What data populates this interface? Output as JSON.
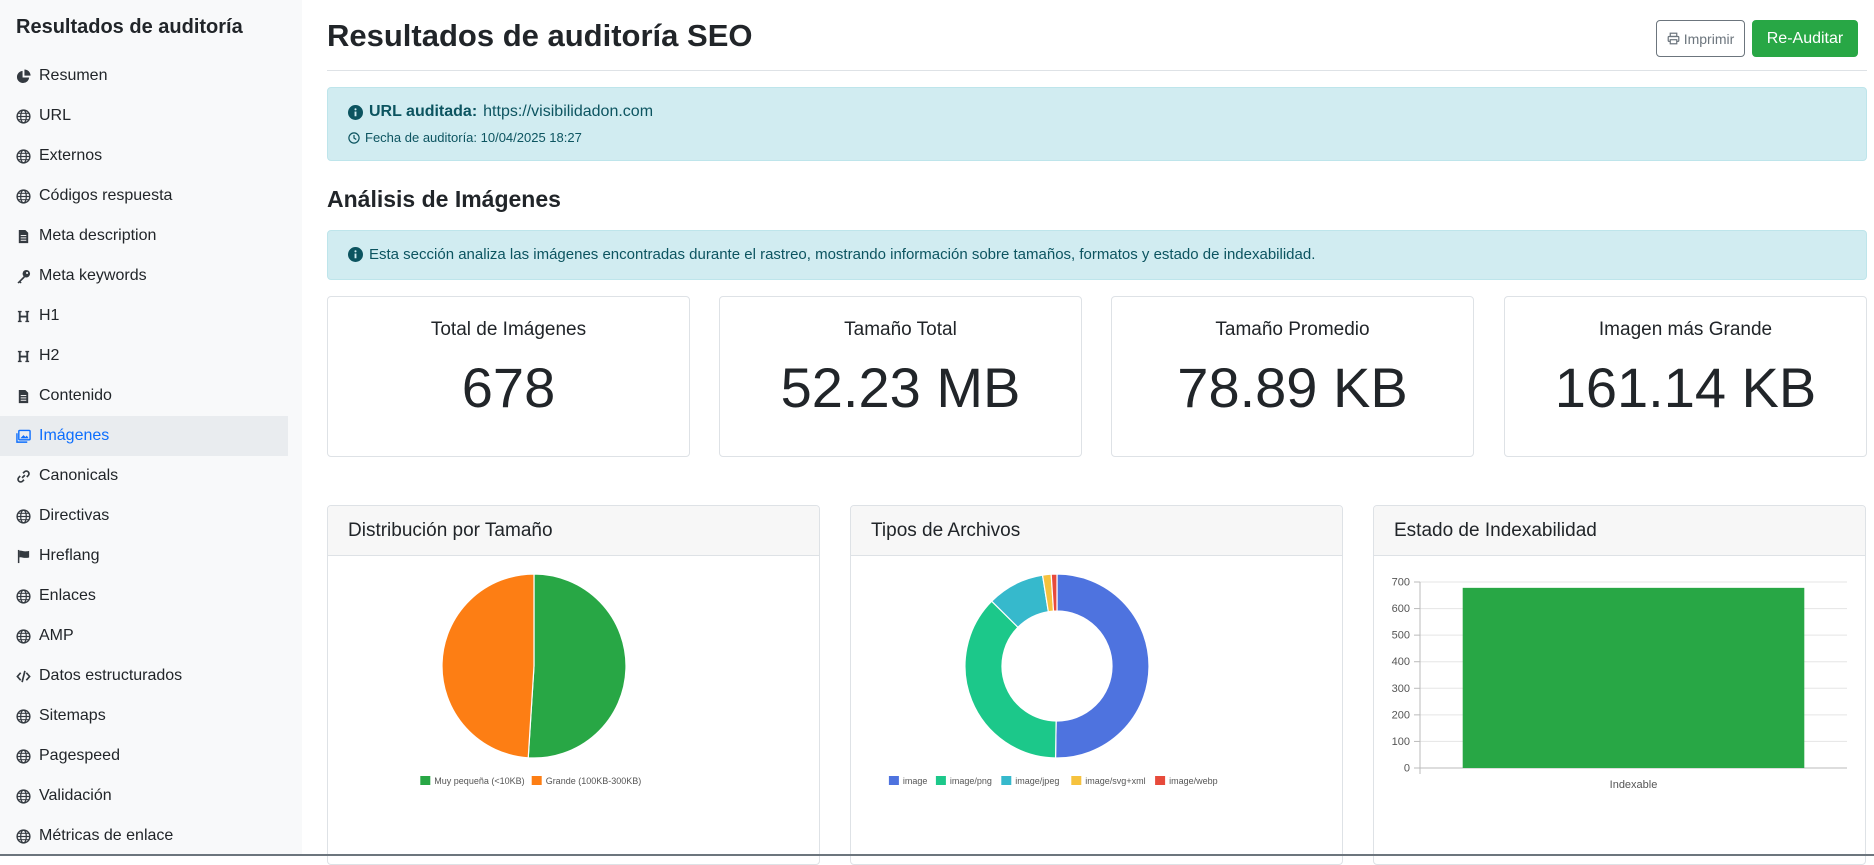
{
  "sidebar": {
    "title": "Resultados de auditoría",
    "items": [
      {
        "label": "Resumen",
        "icon": "pie-chart-icon"
      },
      {
        "label": "URL",
        "icon": "globe-icon"
      },
      {
        "label": "Externos",
        "icon": "globe-icon"
      },
      {
        "label": "Códigos respuesta",
        "icon": "globe-icon"
      },
      {
        "label": "Meta description",
        "icon": "file-icon"
      },
      {
        "label": "Meta keywords",
        "icon": "key-icon"
      },
      {
        "label": "H1",
        "icon": "heading-icon"
      },
      {
        "label": "H2",
        "icon": "heading-icon"
      },
      {
        "label": "Contenido",
        "icon": "file-icon"
      },
      {
        "label": "Imágenes",
        "icon": "images-icon",
        "active": true
      },
      {
        "label": "Canonicals",
        "icon": "link-icon"
      },
      {
        "label": "Directivas",
        "icon": "globe-icon"
      },
      {
        "label": "Hreflang",
        "icon": "flag-icon"
      },
      {
        "label": "Enlaces",
        "icon": "globe-icon"
      },
      {
        "label": "AMP",
        "icon": "globe-icon"
      },
      {
        "label": "Datos estructurados",
        "icon": "code-icon"
      },
      {
        "label": "Sitemaps",
        "icon": "globe-icon"
      },
      {
        "label": "Pagespeed",
        "icon": "globe-icon"
      },
      {
        "label": "Validación",
        "icon": "globe-icon"
      },
      {
        "label": "Métricas de enlace",
        "icon": "globe-icon"
      }
    ]
  },
  "header": {
    "title": "Resultados de auditoría SEO",
    "print_label": "Imprimir",
    "reaudit_label": "Re-Auditar"
  },
  "audit_info": {
    "url_label": "URL auditada:",
    "url": "https://visibilidadon.com",
    "date_text": "Fecha de auditoría: 10/04/2025 18:27"
  },
  "section": {
    "title": "Análisis de Imágenes",
    "description": "Esta sección analiza las imágenes encontradas durante el rastreo, mostrando información sobre tamaños, formatos y estado de indexabilidad."
  },
  "stats": [
    {
      "label": "Total de Imágenes",
      "value": "678"
    },
    {
      "label": "Tamaño Total",
      "value": "52.23 MB"
    },
    {
      "label": "Tamaño Promedio",
      "value": "78.89 KB"
    },
    {
      "label": "Imagen más Grande",
      "value": "161.14 KB"
    }
  ],
  "colors": {
    "accent_green": "#28a745",
    "orange": "#fd7e14",
    "blue": "#4e73df",
    "teal": "#1cc88a",
    "cyan": "#36b9cc",
    "yellow": "#f6c23e",
    "red": "#e74a3b",
    "info_bg": "#d1ecf1"
  },
  "chart_data": [
    {
      "type": "pie",
      "title": "Distribución por Tamaño",
      "categories": [
        "Muy pequeña (<10KB)",
        "Grande (100KB-300KB)"
      ],
      "values": [
        51,
        49
      ],
      "colors": [
        "#28a745",
        "#fd7e14"
      ],
      "legend": "bottom"
    },
    {
      "type": "pie",
      "title": "Tipos de Archivos",
      "donut": true,
      "categories": [
        "image",
        "image/png",
        "image/jpeg",
        "image/svg+xml",
        "image/webp"
      ],
      "values": [
        50,
        37,
        10,
        1.5,
        1
      ],
      "colors": [
        "#4e73df",
        "#1cc88a",
        "#36b9cc",
        "#f6c23e",
        "#e74a3b"
      ],
      "legend": "bottom"
    },
    {
      "type": "bar",
      "title": "Estado de Indexabilidad",
      "categories": [
        "Indexable"
      ],
      "values": [
        678
      ],
      "colors": [
        "#28a745"
      ],
      "ylim": [
        0,
        700
      ],
      "yticks": [
        0,
        100,
        200,
        300,
        400,
        500,
        600,
        700
      ],
      "grid": true
    }
  ]
}
